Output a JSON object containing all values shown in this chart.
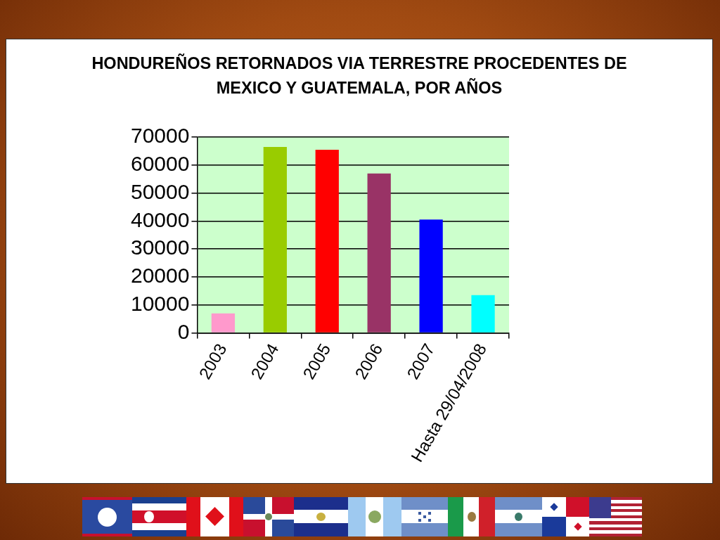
{
  "chart_data": {
    "type": "bar",
    "title": "HONDUREÑOS RETORNADOS VIA TERRESTRE PROCEDENTES DE MEXICO Y GUATEMALA, POR AÑOS",
    "categories": [
      "2003",
      "2004",
      "2005",
      "2006",
      "2007",
      "Hasta 29/04/2008"
    ],
    "values": [
      7000,
      66500,
      65500,
      57000,
      40500,
      13500
    ],
    "colors": [
      "#ff99cc",
      "#99cc00",
      "#ff0000",
      "#993366",
      "#0000ff",
      "#00ffff"
    ],
    "ylim": [
      0,
      70000
    ],
    "yticks": [
      0,
      10000,
      20000,
      30000,
      40000,
      50000,
      60000,
      70000
    ],
    "grid": "y"
  }
}
